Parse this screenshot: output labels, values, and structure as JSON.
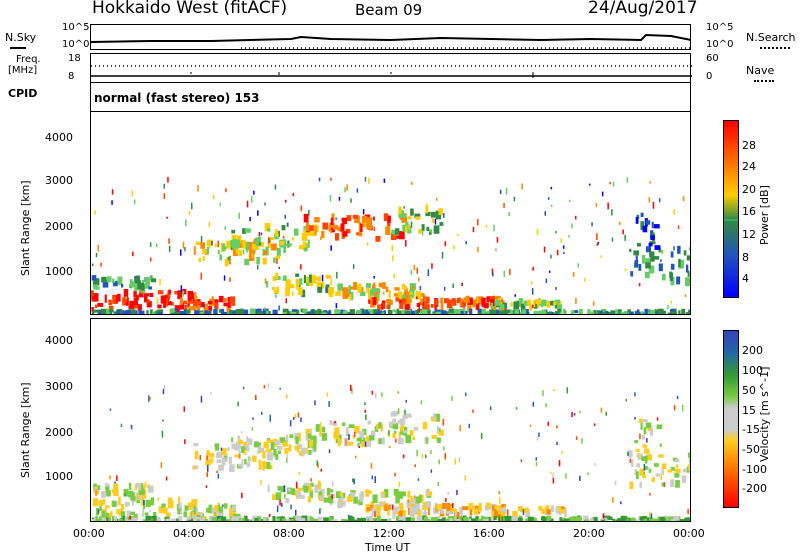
{
  "header": {
    "station": "Hokkaido West (fitACF)",
    "beam": "Beam 09",
    "date": "24/Aug/2017"
  },
  "noise_panel": {
    "left_label": "N.Sky",
    "right_label": "N.Search",
    "left_ticks": [
      "10^5",
      "10^0"
    ],
    "right_ticks": [
      "10^5",
      "10^0"
    ]
  },
  "freq_panel": {
    "left_label_1": "Freq.",
    "left_label_2": "[MHz]",
    "left_ticks": [
      "18",
      "8"
    ],
    "right_label": "Nave",
    "right_ticks": [
      "60",
      "0"
    ]
  },
  "cpid_panel": {
    "label": "CPID",
    "mode_text": "normal (fast stereo) 153"
  },
  "colors": {
    "power_scale": [
      "#0000ff",
      "#2255bb",
      "#338844",
      "#66cc66",
      "#ffcc00",
      "#ff8800",
      "#ff4400",
      "#ff0000"
    ],
    "velocity_scale": [
      "#3344bb",
      "#2266aa",
      "#339933",
      "#77cc44",
      "#cccccc",
      "#ffcc22",
      "#ff8800",
      "#ff4400",
      "#ff0000"
    ]
  },
  "chart_data": [
    {
      "type": "heatmap",
      "name": "Power",
      "ylabel": "Slant Range [km]",
      "yticks": [
        "1000",
        "2000",
        "3000",
        "4000"
      ],
      "colorbar_label": "Power [dB]",
      "colorbar_ticks": [
        "4",
        "8",
        "12",
        "16",
        "20",
        "24",
        "28"
      ]
    },
    {
      "type": "heatmap",
      "name": "Velocity",
      "ylabel": "Slant Range [km]",
      "yticks": [
        "1000",
        "2000",
        "3000",
        "4000"
      ],
      "colorbar_label": "Velocity [m s^-1]",
      "colorbar_ticks": [
        "200",
        "100",
        "50",
        "15",
        "-15",
        "-50",
        "-100",
        "-200"
      ]
    }
  ],
  "x_axis": {
    "label": "Time UT",
    "ticks": [
      "00:00",
      "04:00",
      "08:00",
      "12:00",
      "16:00",
      "20:00",
      "00:00"
    ]
  }
}
